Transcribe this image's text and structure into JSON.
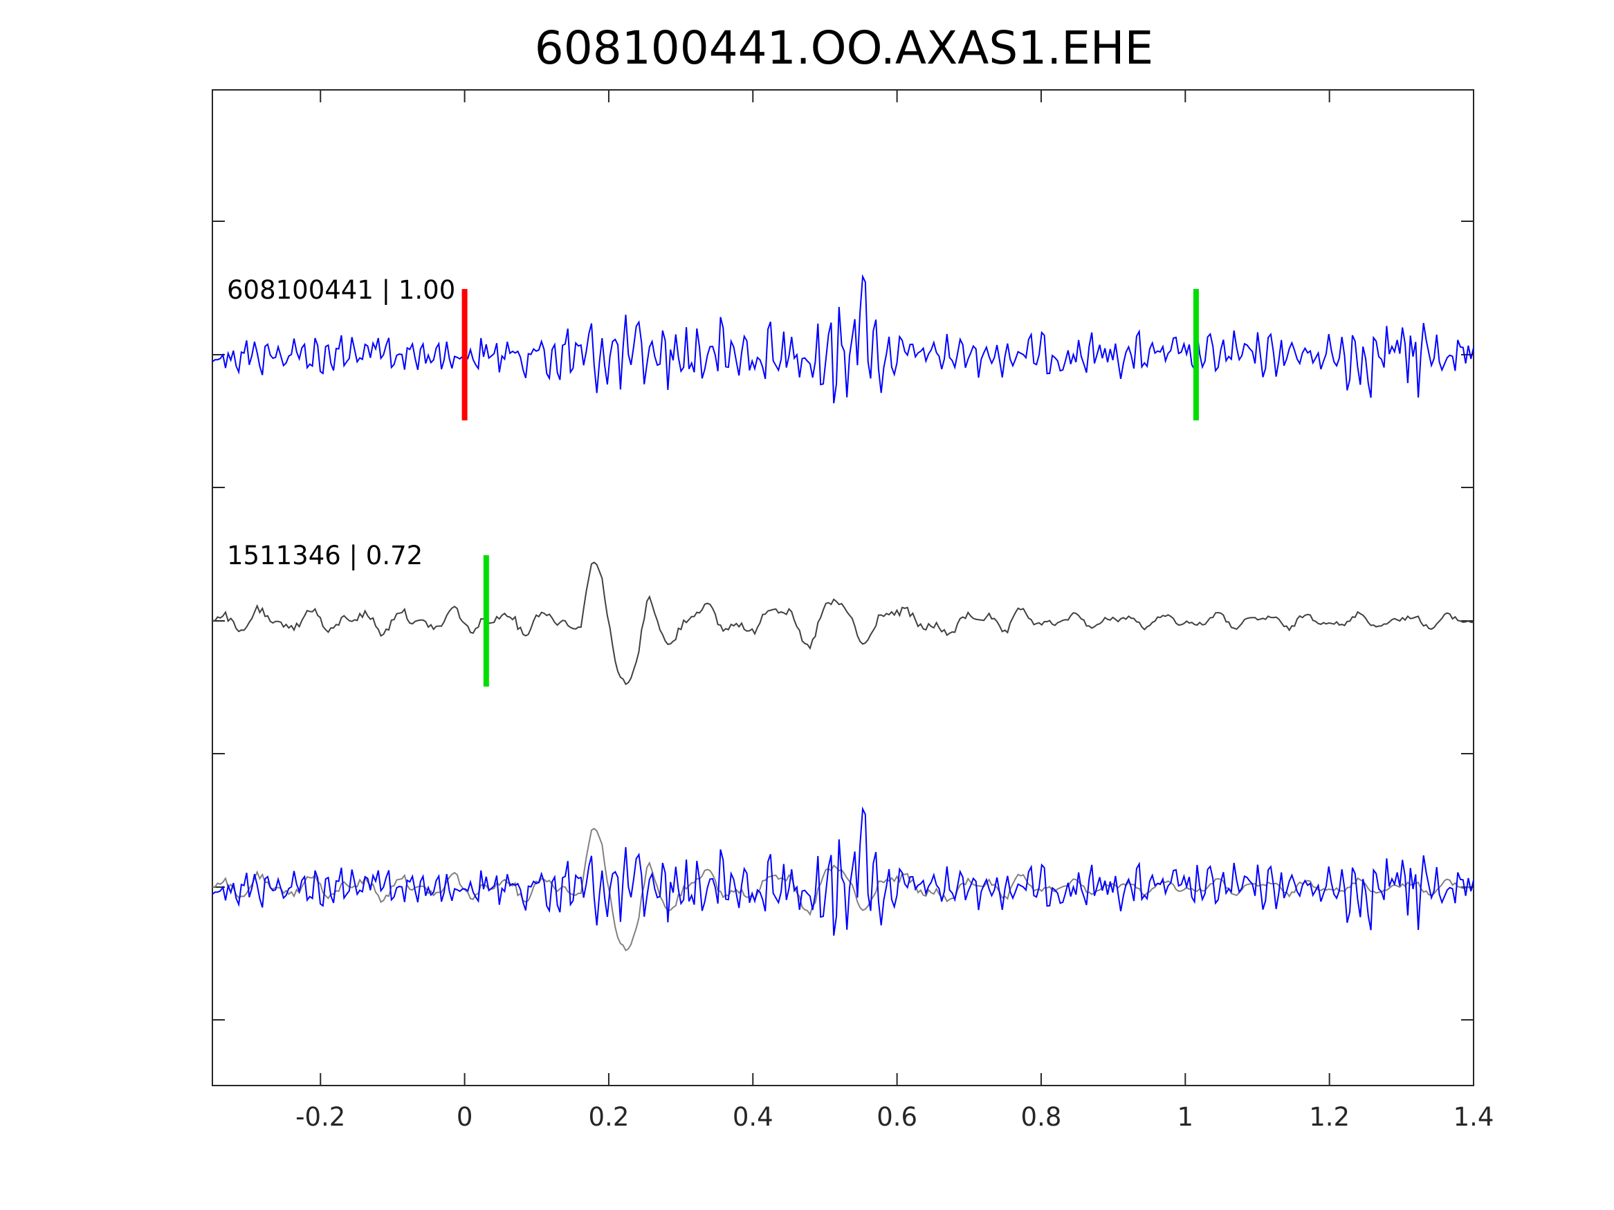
{
  "chart_data": {
    "type": "line",
    "title": "608100441.OO.AXAS1.EHE",
    "xlabel": "",
    "ylabel": "",
    "xlim": [
      -0.35,
      1.4
    ],
    "x_ticks": [
      -0.2,
      0,
      0.2,
      0.4,
      0.6,
      0.8,
      1,
      1.2,
      1.4
    ],
    "x_tick_labels": [
      "-0.2",
      "0",
      "0.2",
      "0.4",
      "0.6",
      "0.8",
      "1",
      "1.2",
      "1.4"
    ],
    "y_tick_labels_shown": false,
    "grid": false,
    "colors": {
      "target_trace": "#0000ff",
      "template_trace": "#404040",
      "template_overlay": "#808080",
      "pick_red": "#ff0000",
      "pick_green": "#00dd00",
      "axes": "#262626"
    },
    "traces": [
      {
        "label": "608100441 | 1.00",
        "event_id": "608100441",
        "correlation": 1.0,
        "color": "#0000ff",
        "picks": [
          {
            "time": 0.0,
            "color": "#ff0000"
          },
          {
            "time": 1.015,
            "color": "#00dd00"
          }
        ],
        "envelope_note": "high-frequency noise with energetic burst near 0.52-0.57 s"
      },
      {
        "label": "1511346 | 0.72",
        "event_id": "1511346",
        "correlation": 0.72,
        "color": "#404040",
        "picks": [
          {
            "time": 0.03,
            "color": "#00dd00"
          }
        ],
        "envelope_note": "lower-frequency waveform with strong pulse near 0.18-0.23 s"
      },
      {
        "label": "",
        "overlay": true,
        "components": [
          "608100441",
          "1511346"
        ],
        "colors": [
          "#0000ff",
          "#808080"
        ]
      }
    ]
  }
}
